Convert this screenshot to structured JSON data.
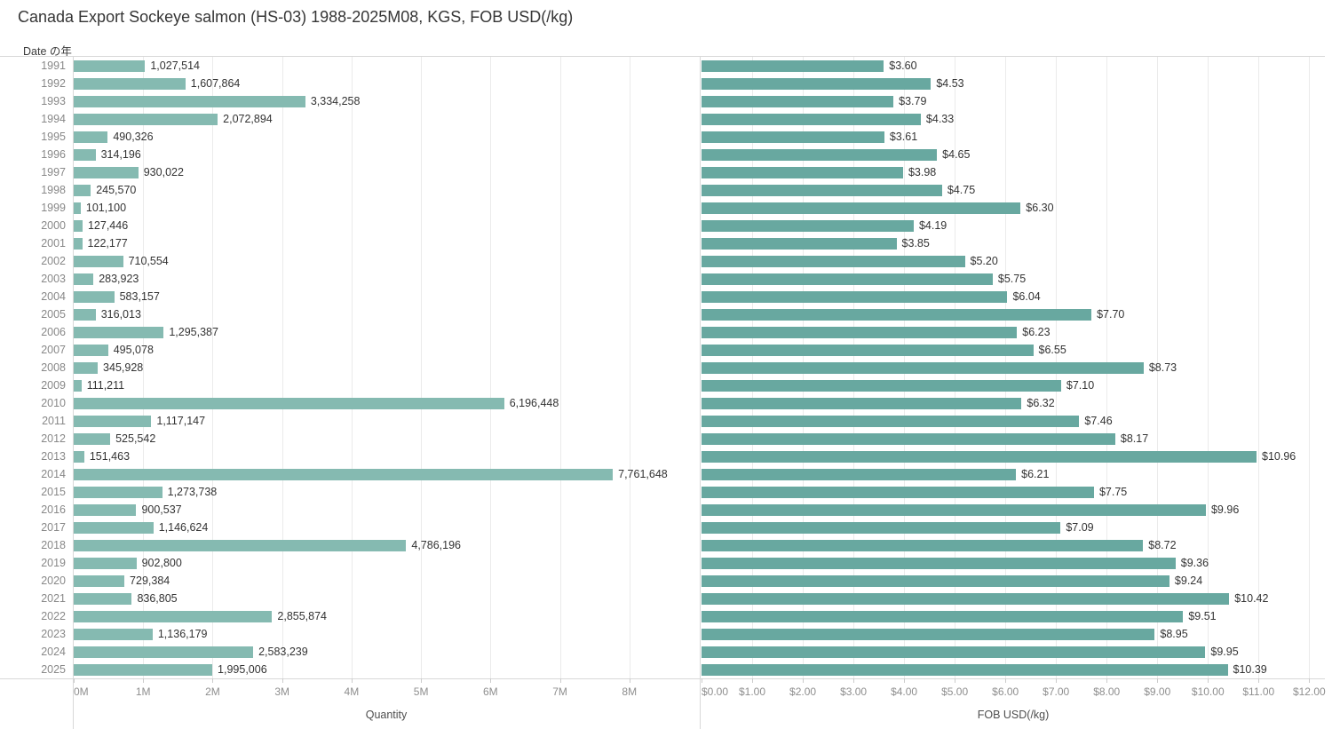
{
  "title": "Canada Export Sockeye salmon (HS-03) 1988-2025M08, KGS, FOB USD(/kg)",
  "row_header": "Date の年",
  "colors": {
    "quantity_bar": "#85bab1",
    "price_bar": "#68a8a0",
    "gridline": "#ebebeb",
    "border": "#d8d8d8"
  },
  "chart_data": [
    {
      "type": "bar",
      "orientation": "horizontal",
      "xlabel": "Quantity",
      "legend": "none",
      "grid": "vertical",
      "categories": [
        1991,
        1992,
        1993,
        1994,
        1995,
        1996,
        1997,
        1998,
        1999,
        2000,
        2001,
        2002,
        2003,
        2004,
        2005,
        2006,
        2007,
        2008,
        2009,
        2010,
        2011,
        2012,
        2013,
        2014,
        2015,
        2016,
        2017,
        2018,
        2019,
        2020,
        2021,
        2022,
        2023,
        2024,
        2025
      ],
      "values": [
        1027514,
        1607864,
        3334258,
        2072894,
        490326,
        314196,
        930022,
        245570,
        101100,
        127446,
        122177,
        710554,
        283923,
        583157,
        316013,
        1295387,
        495078,
        345928,
        111211,
        6196448,
        1117147,
        525542,
        151463,
        7761648,
        1273738,
        900537,
        1146624,
        4786196,
        902800,
        729384,
        836805,
        2855874,
        1136179,
        2583239,
        1995006
      ],
      "value_labels": [
        "1,027,514",
        "1,607,864",
        "3,334,258",
        "2,072,894",
        "490,326",
        "314,196",
        "930,022",
        "245,570",
        "101,100",
        "127,446",
        "122,177",
        "710,554",
        "283,923",
        "583,157",
        "316,013",
        "1,295,387",
        "495,078",
        "345,928",
        "111,211",
        "6,196,448",
        "1,117,147",
        "525,542",
        "151,463",
        "7,761,648",
        "1,273,738",
        "900,537",
        "1,146,624",
        "4,786,196",
        "902,800",
        "729,384",
        "836,805",
        "2,855,874",
        "1,136,179",
        "2,583,239",
        "1,995,006"
      ],
      "axis_ticks": [
        "0M",
        "1M",
        "2M",
        "3M",
        "4M",
        "5M",
        "6M",
        "7M",
        "8M"
      ],
      "axis_tick_values": [
        0,
        1000000,
        2000000,
        3000000,
        4000000,
        5000000,
        6000000,
        7000000,
        8000000
      ],
      "axis_max": 9000000,
      "xlim": [
        0,
        9000000
      ]
    },
    {
      "type": "bar",
      "orientation": "horizontal",
      "xlabel": "FOB USD(/kg)",
      "legend": "none",
      "grid": "vertical",
      "categories": [
        1991,
        1992,
        1993,
        1994,
        1995,
        1996,
        1997,
        1998,
        1999,
        2000,
        2001,
        2002,
        2003,
        2004,
        2005,
        2006,
        2007,
        2008,
        2009,
        2010,
        2011,
        2012,
        2013,
        2014,
        2015,
        2016,
        2017,
        2018,
        2019,
        2020,
        2021,
        2022,
        2023,
        2024,
        2025
      ],
      "values": [
        3.6,
        4.53,
        3.79,
        4.33,
        3.61,
        4.65,
        3.98,
        4.75,
        6.3,
        4.19,
        3.85,
        5.2,
        5.75,
        6.04,
        7.7,
        6.23,
        6.55,
        8.73,
        7.1,
        6.32,
        7.46,
        8.17,
        10.96,
        6.21,
        7.75,
        9.96,
        7.09,
        8.72,
        9.36,
        9.24,
        10.42,
        9.51,
        8.95,
        9.95,
        10.39
      ],
      "value_labels": [
        "$3.60",
        "$4.53",
        "$3.79",
        "$4.33",
        "$3.61",
        "$4.65",
        "$3.98",
        "$4.75",
        "$6.30",
        "$4.19",
        "$3.85",
        "$5.20",
        "$5.75",
        "$6.04",
        "$7.70",
        "$6.23",
        "$6.55",
        "$8.73",
        "$7.10",
        "$6.32",
        "$7.46",
        "$8.17",
        "$10.96",
        "$6.21",
        "$7.75",
        "$9.96",
        "$7.09",
        "$8.72",
        "$9.36",
        "$9.24",
        "$10.42",
        "$9.51",
        "$8.95",
        "$9.95",
        "$10.39"
      ],
      "axis_ticks": [
        "$0.00",
        "$1.00",
        "$2.00",
        "$3.00",
        "$4.00",
        "$5.00",
        "$6.00",
        "$7.00",
        "$8.00",
        "$9.00",
        "$10.00",
        "$11.00",
        "$12.00"
      ],
      "axis_tick_values": [
        0,
        1,
        2,
        3,
        4,
        5,
        6,
        7,
        8,
        9,
        10,
        11,
        12
      ],
      "axis_max": 12.31,
      "xlim": [
        0,
        12.31
      ]
    }
  ]
}
